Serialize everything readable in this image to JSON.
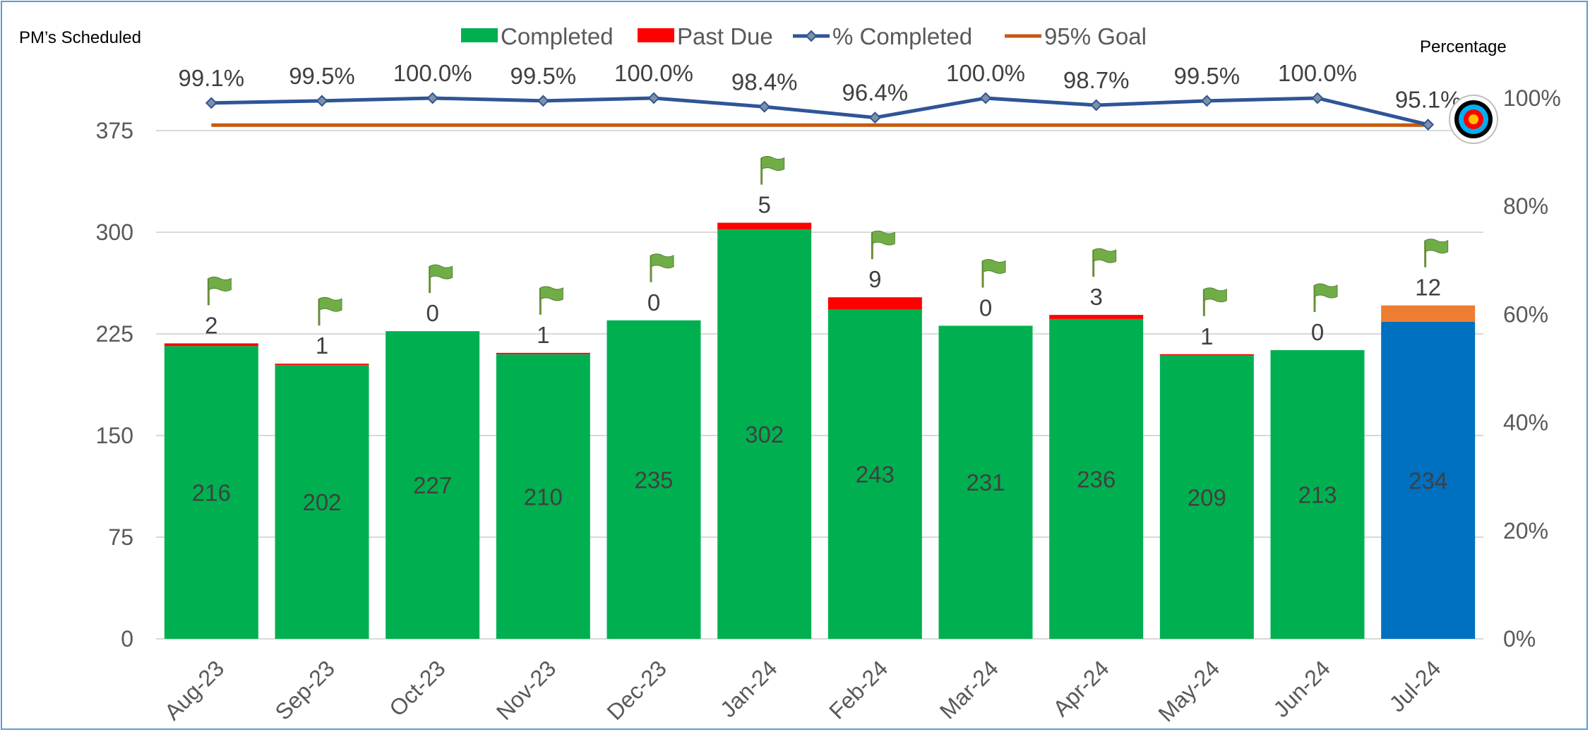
{
  "chart_data": {
    "type": "bar",
    "stacked": true,
    "categories": [
      "Aug-23",
      "Sep-23",
      "Oct-23",
      "Nov-23",
      "Dec-23",
      "Jan-24",
      "Feb-24",
      "Mar-24",
      "Apr-24",
      "May-24",
      "Jun-24",
      "Jul-24"
    ],
    "series": [
      {
        "name": "Completed",
        "type": "bar",
        "axis": "left",
        "color": "#00b050",
        "values": [
          216,
          202,
          227,
          210,
          235,
          302,
          243,
          231,
          236,
          209,
          213,
          234
        ],
        "labels": [
          "216",
          "202",
          "227",
          "210",
          "235",
          "302",
          "243",
          "231",
          "236",
          "209",
          "213",
          "234"
        ]
      },
      {
        "name": "Past Due",
        "type": "bar",
        "axis": "left",
        "color": "#ff0000",
        "values": [
          2,
          1,
          0,
          1,
          0,
          5,
          9,
          0,
          3,
          1,
          0,
          12
        ],
        "labels": [
          "2",
          "1",
          "0",
          "1",
          "0",
          "5",
          "9",
          "0",
          "3",
          "1",
          "0",
          "12"
        ]
      },
      {
        "name": "% Completed",
        "type": "line",
        "axis": "right",
        "color": "#2f5597",
        "values": [
          99.1,
          99.5,
          100.0,
          99.5,
          100.0,
          98.4,
          96.4,
          100.0,
          98.7,
          99.5,
          100.0,
          95.1
        ],
        "labels": [
          "99.1%",
          "99.5%",
          "100.0%",
          "99.5%",
          "100.0%",
          "98.4%",
          "96.4%",
          "100.0%",
          "98.7%",
          "99.5%",
          "100.0%",
          "95.1%"
        ]
      },
      {
        "name": "95% Goal",
        "type": "line",
        "axis": "right",
        "color": "#c55a11",
        "values": [
          95,
          95,
          95,
          95,
          95,
          95,
          95,
          95,
          95,
          95,
          95,
          95
        ]
      }
    ],
    "highlight": {
      "index": 11,
      "completed_color": "#0070c0",
      "past_due_color": "#ed7d31"
    },
    "left_axis": {
      "title": "PM’s Scheduled",
      "min": 0,
      "max": 400,
      "ticks": [
        0,
        75,
        150,
        225,
        300,
        375
      ],
      "tick_labels": [
        "0",
        "75",
        "150",
        "225",
        "300",
        "375"
      ]
    },
    "right_axis": {
      "title": "Percentage",
      "min": 0,
      "max": 100,
      "ticks": [
        0,
        20,
        40,
        60,
        80,
        100
      ],
      "tick_labels": [
        "0%",
        "20%",
        "40%",
        "60%",
        "80%",
        "100%"
      ]
    },
    "legend": {
      "placement": "top"
    },
    "grid": true,
    "flag_icon": "green-flag-icon",
    "target_icon": "bullseye-target-icon"
  }
}
